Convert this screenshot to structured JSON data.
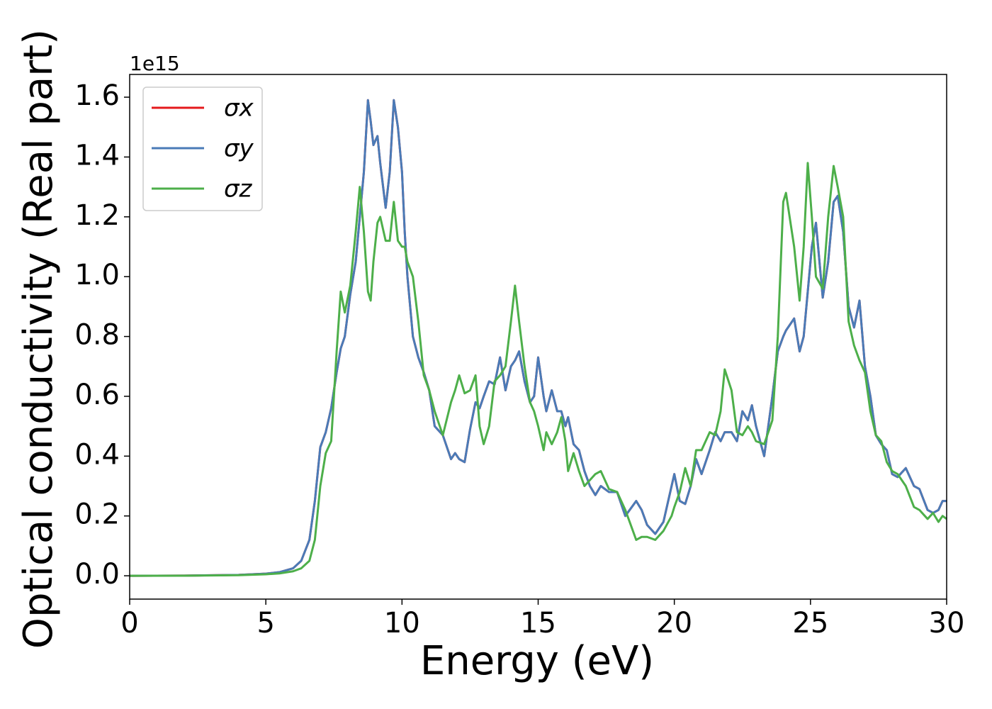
{
  "chart_data": {
    "type": "line",
    "x_label": "Energy (eV)",
    "y_label": "Optical conductivity (Real part)",
    "y_offset_label": "1e15",
    "xlim": [
      0,
      30
    ],
    "ylim": [
      -0.078,
      1.676
    ],
    "xticks": [
      0,
      5,
      10,
      15,
      20,
      25,
      30
    ],
    "yticks": [
      {
        "value": 0,
        "label": "0.0"
      },
      {
        "value": 0.2,
        "label": "0.2"
      },
      {
        "value": 0.4,
        "label": "0.4"
      },
      {
        "value": 0.6,
        "label": "0.6"
      },
      {
        "value": 0.8,
        "label": "0.8"
      },
      {
        "value": 1.0,
        "label": "1.0"
      },
      {
        "value": 1.2,
        "label": "1.2"
      },
      {
        "value": 1.4,
        "label": "1.4"
      },
      {
        "value": 1.6,
        "label": "1.6"
      }
    ],
    "legend": "upper left",
    "x": [
      0,
      2,
      4,
      5,
      5.5,
      6,
      6.3,
      6.6,
      6.8,
      7.0,
      7.2,
      7.4,
      7.6,
      7.75,
      7.9,
      8.1,
      8.3,
      8.45,
      8.6,
      8.75,
      8.85,
      8.95,
      9.1,
      9.2,
      9.4,
      9.55,
      9.7,
      9.85,
      10.0,
      10.1,
      10.2,
      10.4,
      10.6,
      10.8,
      11.0,
      11.2,
      11.5,
      11.8,
      11.95,
      12.1,
      12.3,
      12.5,
      12.7,
      12.85,
      13.0,
      13.2,
      13.4,
      13.6,
      13.8,
      14.0,
      14.15,
      14.3,
      14.5,
      14.7,
      14.85,
      15.0,
      15.2,
      15.3,
      15.5,
      15.7,
      15.85,
      16.0,
      16.1,
      16.3,
      16.5,
      16.7,
      16.9,
      17.1,
      17.3,
      17.6,
      17.9,
      18.2,
      18.6,
      18.8,
      19.0,
      19.3,
      19.6,
      19.9,
      20.0,
      20.2,
      20.4,
      20.6,
      20.8,
      21.0,
      21.3,
      21.5,
      21.7,
      21.85,
      22.1,
      22.3,
      22.5,
      22.7,
      22.85,
      23.0,
      23.3,
      23.6,
      23.8,
      24.0,
      24.1,
      24.4,
      24.6,
      24.75,
      24.9,
      25.05,
      25.2,
      25.45,
      25.65,
      25.85,
      26.0,
      26.2,
      26.4,
      26.6,
      26.8,
      27.0,
      27.2,
      27.4,
      27.6,
      27.8,
      28.0,
      28.2,
      28.5,
      28.8,
      29.0,
      29.3,
      29.5,
      29.7,
      29.85,
      30.0
    ],
    "series": [
      {
        "name": "σx",
        "color": "#e41a1c",
        "values": [
          0,
          0.0005,
          0.003,
          0.007,
          0.012,
          0.025,
          0.05,
          0.12,
          0.25,
          0.43,
          0.48,
          0.56,
          0.68,
          0.76,
          0.8,
          0.94,
          1.05,
          1.2,
          1.35,
          1.59,
          1.52,
          1.44,
          1.47,
          1.38,
          1.23,
          1.35,
          1.59,
          1.5,
          1.35,
          1.15,
          1.0,
          0.8,
          0.73,
          0.68,
          0.62,
          0.5,
          0.47,
          0.39,
          0.41,
          0.39,
          0.38,
          0.49,
          0.58,
          0.56,
          0.6,
          0.65,
          0.64,
          0.73,
          0.62,
          0.7,
          0.72,
          0.75,
          0.65,
          0.58,
          0.6,
          0.73,
          0.6,
          0.55,
          0.62,
          0.55,
          0.55,
          0.5,
          0.53,
          0.44,
          0.42,
          0.35,
          0.3,
          0.27,
          0.3,
          0.28,
          0.28,
          0.2,
          0.25,
          0.22,
          0.17,
          0.14,
          0.18,
          0.3,
          0.34,
          0.25,
          0.24,
          0.3,
          0.39,
          0.34,
          0.42,
          0.48,
          0.45,
          0.48,
          0.48,
          0.45,
          0.55,
          0.52,
          0.57,
          0.5,
          0.4,
          0.6,
          0.75,
          0.8,
          0.82,
          0.86,
          0.75,
          0.8,
          0.95,
          1.1,
          1.18,
          0.93,
          1.05,
          1.25,
          1.27,
          1.15,
          0.9,
          0.83,
          0.92,
          0.7,
          0.6,
          0.47,
          0.44,
          0.42,
          0.34,
          0.33,
          0.36,
          0.3,
          0.29,
          0.22,
          0.21,
          0.22,
          0.25,
          0.25
        ]
      },
      {
        "name": "σy",
        "color": "#4a7bb7",
        "values": [
          0,
          0.0005,
          0.003,
          0.007,
          0.012,
          0.025,
          0.05,
          0.12,
          0.25,
          0.43,
          0.48,
          0.56,
          0.68,
          0.76,
          0.8,
          0.94,
          1.05,
          1.2,
          1.35,
          1.59,
          1.52,
          1.44,
          1.47,
          1.38,
          1.23,
          1.35,
          1.59,
          1.5,
          1.35,
          1.15,
          1.0,
          0.8,
          0.73,
          0.68,
          0.62,
          0.5,
          0.47,
          0.39,
          0.41,
          0.39,
          0.38,
          0.49,
          0.58,
          0.56,
          0.6,
          0.65,
          0.64,
          0.73,
          0.62,
          0.7,
          0.72,
          0.75,
          0.65,
          0.58,
          0.6,
          0.73,
          0.6,
          0.55,
          0.62,
          0.55,
          0.55,
          0.5,
          0.53,
          0.44,
          0.42,
          0.35,
          0.3,
          0.27,
          0.3,
          0.28,
          0.28,
          0.2,
          0.25,
          0.22,
          0.17,
          0.14,
          0.18,
          0.3,
          0.34,
          0.25,
          0.24,
          0.3,
          0.39,
          0.34,
          0.42,
          0.48,
          0.45,
          0.48,
          0.48,
          0.45,
          0.55,
          0.52,
          0.57,
          0.5,
          0.4,
          0.6,
          0.75,
          0.8,
          0.82,
          0.86,
          0.75,
          0.8,
          0.95,
          1.1,
          1.18,
          0.93,
          1.05,
          1.25,
          1.27,
          1.15,
          0.9,
          0.83,
          0.92,
          0.7,
          0.6,
          0.47,
          0.44,
          0.42,
          0.34,
          0.33,
          0.36,
          0.3,
          0.29,
          0.22,
          0.21,
          0.22,
          0.25,
          0.25
        ]
      },
      {
        "name": "σz",
        "color": "#4daf4a",
        "values": [
          0,
          0.0003,
          0.002,
          0.005,
          0.008,
          0.015,
          0.025,
          0.05,
          0.12,
          0.3,
          0.41,
          0.45,
          0.75,
          0.95,
          0.88,
          0.97,
          1.15,
          1.3,
          1.15,
          0.95,
          0.92,
          1.05,
          1.18,
          1.2,
          1.12,
          1.12,
          1.25,
          1.12,
          1.1,
          1.1,
          1.05,
          1.0,
          0.85,
          0.67,
          0.62,
          0.55,
          0.47,
          0.58,
          0.62,
          0.67,
          0.61,
          0.62,
          0.67,
          0.5,
          0.44,
          0.5,
          0.65,
          0.67,
          0.7,
          0.85,
          0.97,
          0.85,
          0.7,
          0.58,
          0.55,
          0.5,
          0.42,
          0.48,
          0.44,
          0.48,
          0.53,
          0.45,
          0.35,
          0.41,
          0.35,
          0.3,
          0.32,
          0.34,
          0.35,
          0.29,
          0.28,
          0.22,
          0.12,
          0.13,
          0.13,
          0.12,
          0.15,
          0.2,
          0.23,
          0.28,
          0.36,
          0.3,
          0.42,
          0.42,
          0.48,
          0.47,
          0.55,
          0.69,
          0.62,
          0.48,
          0.47,
          0.5,
          0.48,
          0.45,
          0.44,
          0.52,
          0.8,
          1.25,
          1.28,
          1.1,
          0.92,
          1.1,
          1.38,
          1.2,
          1.0,
          0.96,
          1.2,
          1.37,
          1.3,
          1.2,
          0.85,
          0.77,
          0.72,
          0.68,
          0.55,
          0.47,
          0.45,
          0.38,
          0.35,
          0.34,
          0.3,
          0.23,
          0.22,
          0.19,
          0.21,
          0.18,
          0.2,
          0.19
        ]
      }
    ]
  }
}
